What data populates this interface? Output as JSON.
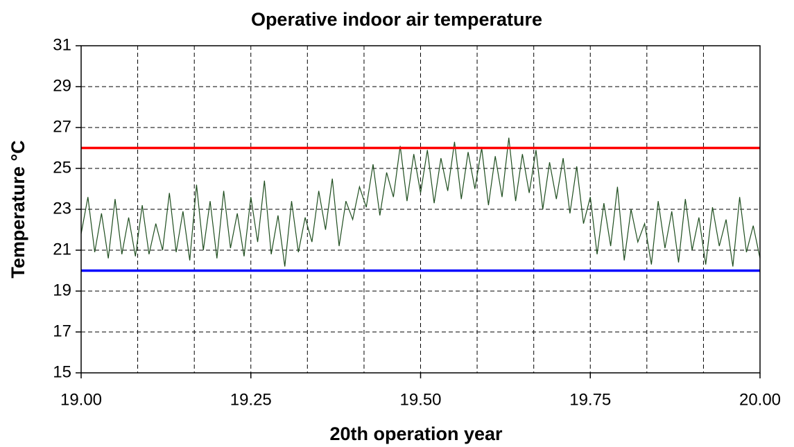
{
  "chart_data": {
    "type": "line",
    "title": "Operative indoor air temperature",
    "xlabel": "20th operation year",
    "ylabel": "Temperature °C",
    "xlim": [
      19,
      20
    ],
    "ylim": [
      15,
      31
    ],
    "xticks": [
      {
        "value": 19,
        "label": "19.00"
      },
      {
        "value": 19.25,
        "label": "19.25"
      },
      {
        "value": 19.5,
        "label": "19.50"
      },
      {
        "value": 19.75,
        "label": "19.75"
      },
      {
        "value": 20,
        "label": "20.00"
      }
    ],
    "yticks": [
      15,
      17,
      19,
      21,
      23,
      25,
      27,
      29,
      31
    ],
    "xgrid": [
      19.0833,
      19.1667,
      19.25,
      19.3333,
      19.4167,
      19.5,
      19.5833,
      19.6667,
      19.75,
      19.8333,
      19.9167
    ],
    "grid": true,
    "reference_lines": [
      {
        "value": 26,
        "color": "#ff0000"
      },
      {
        "value": 20,
        "color": "#0000ff"
      }
    ],
    "x": [
      19,
      19.01,
      19.02,
      19.03,
      19.04,
      19.05,
      19.06,
      19.07,
      19.08,
      19.09,
      19.1,
      19.11,
      19.12,
      19.13,
      19.14,
      19.15,
      19.16,
      19.17,
      19.18,
      19.19,
      19.2,
      19.21,
      19.22,
      19.23,
      19.24,
      19.25,
      19.26,
      19.27,
      19.28,
      19.29,
      19.3,
      19.31,
      19.32,
      19.33,
      19.34,
      19.35,
      19.36,
      19.37,
      19.38,
      19.39,
      19.4,
      19.41,
      19.42,
      19.43,
      19.44,
      19.45,
      19.46,
      19.47,
      19.48,
      19.49,
      19.5,
      19.51,
      19.52,
      19.53,
      19.54,
      19.55,
      19.56,
      19.57,
      19.58,
      19.59,
      19.6,
      19.61,
      19.62,
      19.63,
      19.64,
      19.65,
      19.66,
      19.67,
      19.68,
      19.69,
      19.7,
      19.71,
      19.72,
      19.73,
      19.74,
      19.75,
      19.76,
      19.77,
      19.78,
      19.79,
      19.8,
      19.81,
      19.82,
      19.83,
      19.84,
      19.85,
      19.86,
      19.87,
      19.88,
      19.89,
      19.9,
      19.91,
      19.92,
      19.93,
      19.94,
      19.95,
      19.96,
      19.97,
      19.98,
      19.99,
      20
    ],
    "series": [
      {
        "color": "#1e4d1e",
        "values": [
          21.8,
          23.6,
          20.9,
          22.8,
          20.6,
          23.5,
          20.8,
          22.6,
          20.7,
          23.2,
          20.8,
          22.3,
          21.0,
          23.8,
          20.9,
          22.9,
          20.5,
          24.2,
          21.0,
          23.4,
          20.6,
          23.9,
          21.1,
          22.8,
          20.7,
          23.6,
          21.4,
          24.4,
          20.8,
          22.7,
          20.2,
          23.4,
          20.9,
          22.6,
          21.4,
          23.9,
          22.0,
          24.5,
          21.2,
          23.4,
          22.5,
          24.1,
          23.1,
          25.2,
          22.7,
          24.8,
          23.6,
          26.1,
          23.4,
          25.7,
          23.8,
          25.9,
          23.3,
          25.5,
          23.9,
          26.3,
          23.5,
          25.8,
          24.0,
          26.0,
          23.2,
          25.6,
          23.6,
          26.5,
          23.4,
          25.7,
          23.8,
          25.9,
          23.0,
          25.3,
          23.5,
          25.5,
          22.8,
          25.1,
          22.3,
          23.6,
          20.8,
          23.3,
          21.2,
          24.1,
          20.5,
          23.0,
          21.4,
          22.3,
          20.3,
          23.4,
          21.1,
          22.9,
          20.4,
          23.5,
          21.0,
          22.6,
          20.3,
          23.1,
          21.2,
          22.5,
          20.2,
          23.6,
          20.9,
          22.2,
          20.6
        ]
      }
    ]
  }
}
